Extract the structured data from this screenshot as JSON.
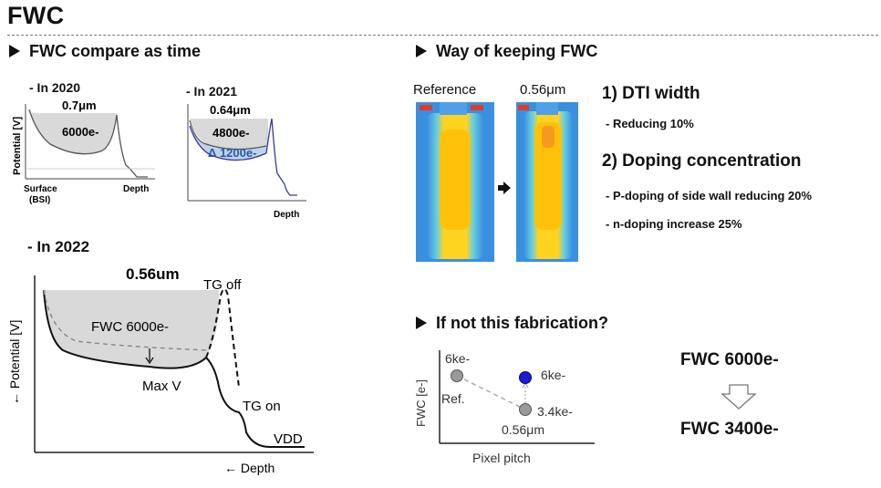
{
  "title": "FWC",
  "left": {
    "heading": "FWC compare as time",
    "y2020": {
      "label": "- In 2020",
      "pitch": "0.7μm",
      "fwc": "6000e-",
      "ylabel": "Potential [V]",
      "xlabel_left": "Surface",
      "xlabel_left2": "(BSI)",
      "xlabel_right": "Depth"
    },
    "y2021": {
      "label": "- In 2021",
      "pitch": "0.64μm",
      "fwc": "4800e-",
      "delta": "Δ 1200e-",
      "xlabel": "Depth"
    },
    "y2022": {
      "label": "- In 2022",
      "pitch": "0.56um",
      "tg_off": "TG off",
      "tg_on": "TG on",
      "fwc": "FWC 6000e-",
      "maxv": "Max V",
      "vdd": "VDD",
      "ylabel": "← Potential [V]",
      "xlabel": "← Depth"
    }
  },
  "right": {
    "heading": "Way of keeping FWC",
    "sim": {
      "ref_label": "Reference",
      "new_label": "0.56μm"
    },
    "methods": {
      "m1_title": "1) DTI width",
      "m1_item": "- Reducing 10%",
      "m2_title": "2) Doping concentration",
      "m2_item1": "- P-doping of side wall reducing 20%",
      "m2_item2": "- n-doping increase 25%"
    },
    "fab_heading": "If not this fabrication?",
    "fab_chart": {
      "ylabel": "FWC [e-]",
      "xlabel": "Pixel pitch",
      "ref_value": "6ke-",
      "ref_label": "Ref.",
      "new_high": "6ke-",
      "new_low": "3.4ke-",
      "new_pitch": "0.56μm"
    },
    "result": {
      "before": "FWC 6000e-",
      "after": "FWC 3400e-"
    }
  },
  "colors": {
    "fill_gray": "#d9d9d9",
    "blue_fill": "#bcd4ec",
    "point_blue": "#1b1bd8",
    "point_gray": "#9a9a9a",
    "sim_blue": "#3a8fe0",
    "sim_yellow": "#ffd320"
  }
}
